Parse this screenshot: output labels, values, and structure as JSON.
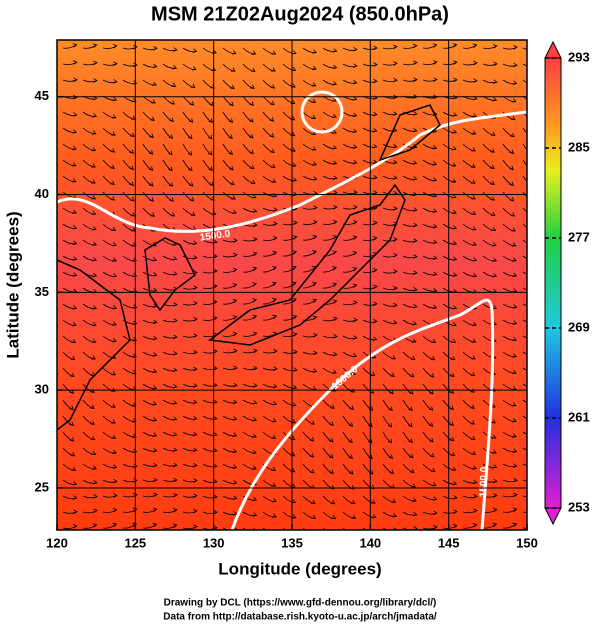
{
  "chart_data": {
    "type": "map",
    "title": "MSM 21Z02Aug2024 (850.0hPa)",
    "x_label": "Longitude (degrees)",
    "y_label": "Latitude  (degrees)",
    "xlim": [
      120,
      150
    ],
    "xticks": [
      120,
      125,
      130,
      135,
      140,
      145,
      150
    ],
    "ylim": [
      22.85,
      47.9
    ],
    "yticks": [
      25,
      30,
      35,
      40,
      45
    ],
    "grid": true,
    "contour_labels": [
      "1500.0",
      "1500.0",
      "1500.0"
    ],
    "colorbar": {
      "lim": [
        253,
        293
      ],
      "ticks": [
        253,
        261,
        269,
        277,
        285,
        293
      ]
    },
    "footer": [
      "Drawing by DCL (https://www.gfd-dennou.org/library/dcl/)",
      "Data from http://database.rish.kyoto-u.ac.jp/arch/jmadata/"
    ]
  }
}
